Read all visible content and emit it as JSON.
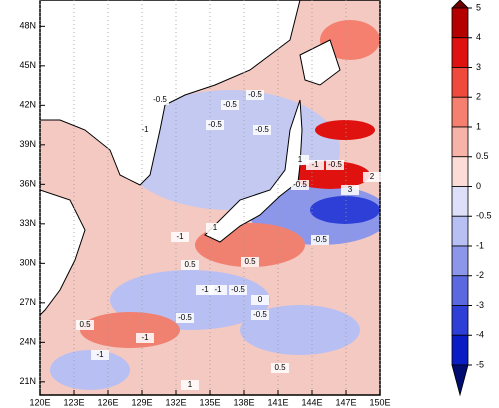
{
  "map": {
    "xlim": [
      120,
      150
    ],
    "ylim": [
      20,
      50
    ],
    "grid": true,
    "xticks": [
      {
        "value": 120,
        "label": "120E"
      },
      {
        "value": 123,
        "label": "123E"
      },
      {
        "value": 126,
        "label": "126E"
      },
      {
        "value": 129,
        "label": "129E"
      },
      {
        "value": 132,
        "label": "132E"
      },
      {
        "value": 135,
        "label": "135E"
      },
      {
        "value": 138,
        "label": "138E"
      },
      {
        "value": 141,
        "label": "141E"
      },
      {
        "value": 144,
        "label": "144E"
      },
      {
        "value": 147,
        "label": "147E"
      },
      {
        "value": 150,
        "label": "150E"
      }
    ],
    "yticks": [
      {
        "value": 21,
        "label": "21N"
      },
      {
        "value": 24,
        "label": "24N"
      },
      {
        "value": 27,
        "label": "27N"
      },
      {
        "value": 30,
        "label": "30N"
      },
      {
        "value": 33,
        "label": "33N"
      },
      {
        "value": 36,
        "label": "36N"
      },
      {
        "value": 39,
        "label": "39N"
      },
      {
        "value": 42,
        "label": "42N"
      },
      {
        "value": 45,
        "label": "45N"
      },
      {
        "value": 48,
        "label": "48N"
      }
    ],
    "contour_labels": [
      "-0.5",
      "-0.5",
      "-0.5",
      "-1",
      "-0.5",
      "-0.5",
      "1",
      "-1",
      "-0.5",
      "2",
      "3",
      "-0.5",
      "1",
      "-1",
      "-0.5",
      "0.5",
      "0.5",
      "-1",
      "-1",
      "-0.5",
      "0",
      "-0.5",
      "-0.5",
      "-1",
      "0.5",
      "1",
      "-1",
      "0.5"
    ]
  },
  "colorbar": {
    "levels": [
      5,
      4,
      3,
      2,
      1,
      0.5,
      0,
      -0.5,
      -1,
      -2,
      -3,
      -4,
      -5
    ],
    "colors": [
      "#6b0000",
      "#b50000",
      "#e0120f",
      "#f04a3c",
      "#f58070",
      "#f8b3a8",
      "#fbdcd6",
      "#dde0f8",
      "#b8bff2",
      "#8d97ea",
      "#5b69e0",
      "#2d3fd6",
      "#0a1cc4",
      "#000c70"
    ]
  }
}
